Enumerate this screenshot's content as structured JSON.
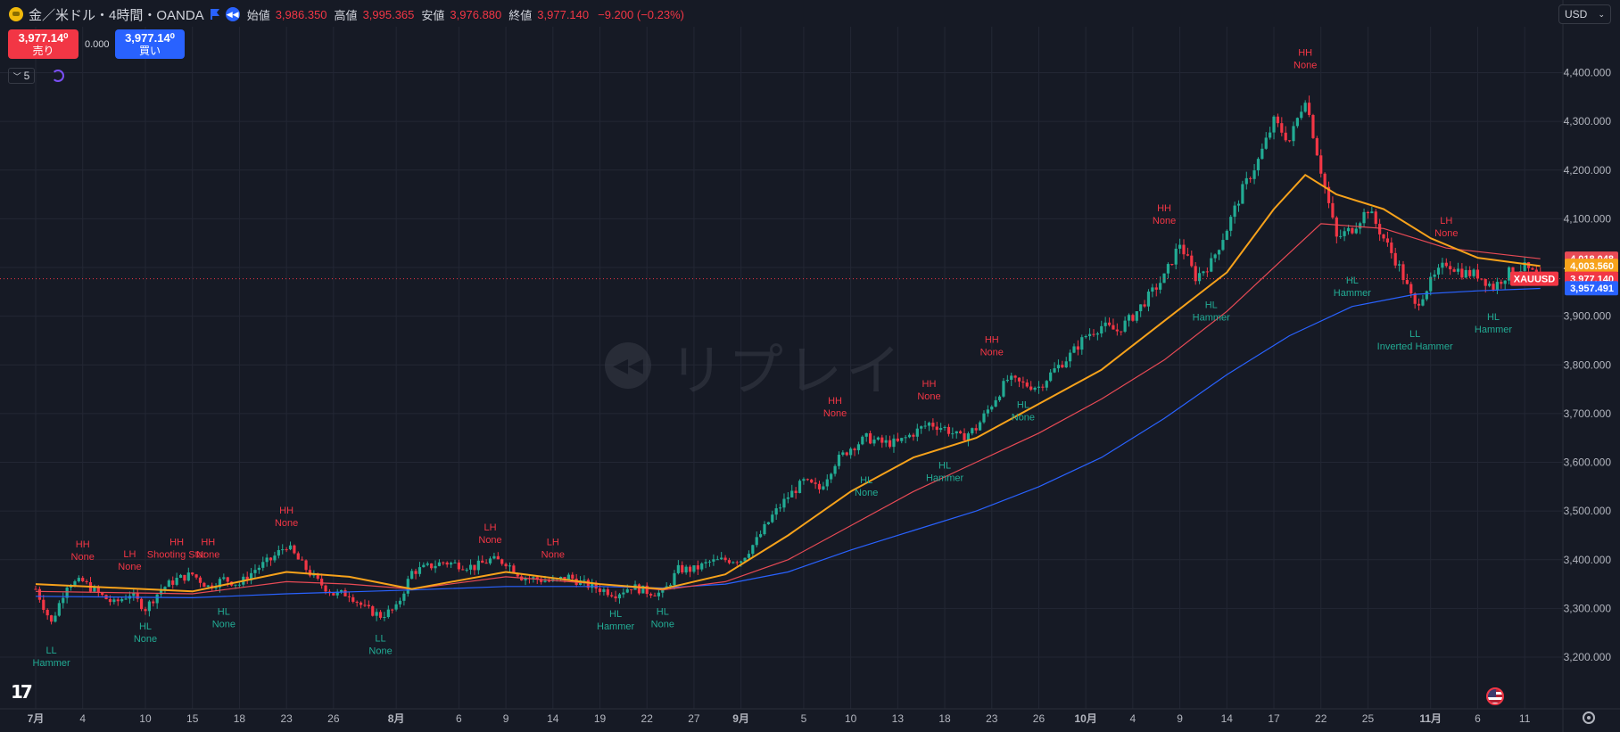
{
  "header": {
    "symbol": "金／米ドル・4時間・OANDA",
    "open_label": "始値",
    "open": "3,986.350",
    "high_label": "高値",
    "high": "3,995.365",
    "low_label": "安値",
    "low": "3,976.880",
    "close_label": "終値",
    "close": "3,977.140",
    "change": "−9.200 (−0.23%)"
  },
  "trade": {
    "sell_price": "3,977.14⁰",
    "sell_label": "売り",
    "spread": "0.000",
    "buy_price": "3,977.14⁰",
    "buy_label": "買い"
  },
  "indicator_count": "5",
  "currency": "USD",
  "watermark": "リプレイ",
  "colors": {
    "bg": "#161a25",
    "up": "#22ab94",
    "down": "#f23645",
    "ma_fast": "#f7a21b",
    "ma_mid": "#e84a55",
    "ma_slow": "#2962ff",
    "grid": "#232734",
    "text": "#b2b5be"
  },
  "chart_data": {
    "type": "candlestick",
    "symbol": "XAUUSD",
    "y_ticks": [
      3200000,
      3300000,
      3400000,
      3500000,
      3600000,
      3700000,
      3800000,
      3900000,
      4000000,
      4100000,
      4200000,
      4300000,
      4400000
    ],
    "y_tick_labels": [
      "3,200.000",
      "3,300.000",
      "3,400.000",
      "3,500.000",
      "3,600.000",
      "3,700.000",
      "3,800.000",
      "3,900.000",
      "4,000.000",
      "4,100.000",
      "4,200.000",
      "4,300.000",
      "4,400.000"
    ],
    "x_ticks": [
      {
        "t": 0,
        "label": "7月",
        "bold": true
      },
      {
        "t": 3,
        "label": "4"
      },
      {
        "t": 7,
        "label": "10"
      },
      {
        "t": 10,
        "label": "15"
      },
      {
        "t": 13,
        "label": "18"
      },
      {
        "t": 16,
        "label": "23"
      },
      {
        "t": 19,
        "label": "26"
      },
      {
        "t": 23,
        "label": "8月",
        "bold": true
      },
      {
        "t": 27,
        "label": "6"
      },
      {
        "t": 30,
        "label": "9"
      },
      {
        "t": 33,
        "label": "14"
      },
      {
        "t": 36,
        "label": "19"
      },
      {
        "t": 39,
        "label": "22"
      },
      {
        "t": 42,
        "label": "27"
      },
      {
        "t": 45,
        "label": "9月",
        "bold": true
      },
      {
        "t": 49,
        "label": "5"
      },
      {
        "t": 52,
        "label": "10"
      },
      {
        "t": 55,
        "label": "13"
      },
      {
        "t": 58,
        "label": "18"
      },
      {
        "t": 61,
        "label": "23"
      },
      {
        "t": 64,
        "label": "26"
      },
      {
        "t": 67,
        "label": "10月",
        "bold": true
      },
      {
        "t": 70,
        "label": "4"
      },
      {
        "t": 73,
        "label": "9"
      },
      {
        "t": 76,
        "label": "14"
      },
      {
        "t": 79,
        "label": "17"
      },
      {
        "t": 82,
        "label": "22"
      },
      {
        "t": 85,
        "label": "25"
      },
      {
        "t": 89,
        "label": "11月",
        "bold": true
      },
      {
        "t": 92,
        "label": "6"
      },
      {
        "t": 95,
        "label": "11"
      }
    ],
    "price_path": [
      [
        0,
        3340
      ],
      [
        1,
        3270
      ],
      [
        2,
        3350
      ],
      [
        3,
        3355
      ],
      [
        4,
        3330
      ],
      [
        5,
        3310
      ],
      [
        6,
        3330
      ],
      [
        7,
        3300
      ],
      [
        8,
        3340
      ],
      [
        9,
        3360
      ],
      [
        10,
        3370
      ],
      [
        11,
        3345
      ],
      [
        12,
        3360
      ],
      [
        13,
        3350
      ],
      [
        14,
        3380
      ],
      [
        15,
        3400
      ],
      [
        16,
        3430
      ],
      [
        17,
        3390
      ],
      [
        18,
        3355
      ],
      [
        19,
        3330
      ],
      [
        20,
        3330
      ],
      [
        21,
        3300
      ],
      [
        22,
        3285
      ],
      [
        23,
        3300
      ],
      [
        24,
        3375
      ],
      [
        25,
        3385
      ],
      [
        26,
        3395
      ],
      [
        27,
        3390
      ],
      [
        28,
        3385
      ],
      [
        29,
        3400
      ],
      [
        30,
        3395
      ],
      [
        31,
        3365
      ],
      [
        32,
        3360
      ],
      [
        33,
        3355
      ],
      [
        34,
        3365
      ],
      [
        35,
        3350
      ],
      [
        36,
        3340
      ],
      [
        37,
        3330
      ],
      [
        38,
        3345
      ],
      [
        39,
        3335
      ],
      [
        40,
        3330
      ],
      [
        41,
        3380
      ],
      [
        42,
        3380
      ],
      [
        43,
        3395
      ],
      [
        44,
        3400
      ],
      [
        45,
        3400
      ],
      [
        46,
        3440
      ],
      [
        47,
        3490
      ],
      [
        48,
        3530
      ],
      [
        49,
        3560
      ],
      [
        50,
        3545
      ],
      [
        51,
        3600
      ],
      [
        52,
        3630
      ],
      [
        53,
        3650
      ],
      [
        54,
        3640
      ],
      [
        55,
        3640
      ],
      [
        56,
        3660
      ],
      [
        57,
        3680
      ],
      [
        58,
        3670
      ],
      [
        59,
        3650
      ],
      [
        60,
        3670
      ],
      [
        61,
        3720
      ],
      [
        62,
        3770
      ],
      [
        63,
        3760
      ],
      [
        64,
        3755
      ],
      [
        65,
        3790
      ],
      [
        66,
        3820
      ],
      [
        67,
        3860
      ],
      [
        68,
        3880
      ],
      [
        69,
        3870
      ],
      [
        70,
        3900
      ],
      [
        71,
        3940
      ],
      [
        72,
        3980
      ],
      [
        73,
        4050
      ],
      [
        74,
        3980
      ],
      [
        75,
        4010
      ],
      [
        76,
        4080
      ],
      [
        77,
        4160
      ],
      [
        78,
        4220
      ],
      [
        79,
        4300
      ],
      [
        80,
        4260
      ],
      [
        81,
        4350
      ],
      [
        82,
        4200
      ],
      [
        83,
        4060
      ],
      [
        84,
        4080
      ],
      [
        85,
        4120
      ],
      [
        86,
        4060
      ],
      [
        87,
        4000
      ],
      [
        88,
        3920
      ],
      [
        89,
        3970
      ],
      [
        90,
        4010
      ],
      [
        91,
        3990
      ],
      [
        92,
        3985
      ],
      [
        93,
        3960
      ],
      [
        94,
        3990
      ],
      [
        95,
        4000
      ],
      [
        96,
        3977
      ]
    ],
    "last_index": 96,
    "ma_fast_label": "4,003.560",
    "ma_mid_label": "4,018.048",
    "ma_slow_label": "3,957.491",
    "price_label": "3,977.140",
    "ma_fast": [
      [
        0,
        3350
      ],
      [
        10,
        3335
      ],
      [
        16,
        3375
      ],
      [
        20,
        3365
      ],
      [
        24,
        3340
      ],
      [
        30,
        3375
      ],
      [
        36,
        3350
      ],
      [
        40,
        3340
      ],
      [
        44,
        3370
      ],
      [
        48,
        3450
      ],
      [
        52,
        3540
      ],
      [
        56,
        3610
      ],
      [
        60,
        3650
      ],
      [
        64,
        3720
      ],
      [
        68,
        3790
      ],
      [
        72,
        3890
      ],
      [
        76,
        3990
      ],
      [
        79,
        4120
      ],
      [
        81,
        4190
      ],
      [
        83,
        4150
      ],
      [
        86,
        4120
      ],
      [
        89,
        4060
      ],
      [
        92,
        4020
      ],
      [
        96,
        4003
      ]
    ],
    "ma_mid": [
      [
        0,
        3335
      ],
      [
        10,
        3330
      ],
      [
        16,
        3355
      ],
      [
        20,
        3350
      ],
      [
        24,
        3340
      ],
      [
        30,
        3365
      ],
      [
        36,
        3350
      ],
      [
        40,
        3338
      ],
      [
        44,
        3355
      ],
      [
        48,
        3400
      ],
      [
        52,
        3470
      ],
      [
        56,
        3540
      ],
      [
        60,
        3600
      ],
      [
        64,
        3660
      ],
      [
        68,
        3730
      ],
      [
        72,
        3810
      ],
      [
        76,
        3910
      ],
      [
        80,
        4030
      ],
      [
        82,
        4090
      ],
      [
        86,
        4080
      ],
      [
        90,
        4040
      ],
      [
        96,
        4018
      ]
    ],
    "ma_slow": [
      [
        0,
        3325
      ],
      [
        10,
        3322
      ],
      [
        16,
        3330
      ],
      [
        24,
        3338
      ],
      [
        30,
        3345
      ],
      [
        36,
        3345
      ],
      [
        40,
        3342
      ],
      [
        44,
        3350
      ],
      [
        48,
        3375
      ],
      [
        52,
        3420
      ],
      [
        56,
        3460
      ],
      [
        60,
        3500
      ],
      [
        64,
        3550
      ],
      [
        68,
        3610
      ],
      [
        72,
        3690
      ],
      [
        76,
        3780
      ],
      [
        80,
        3860
      ],
      [
        84,
        3920
      ],
      [
        88,
        3945
      ],
      [
        92,
        3952
      ],
      [
        96,
        3957
      ]
    ],
    "swing_labels": [
      {
        "t": 1,
        "p": 3240,
        "kind": "low",
        "line1": "LL",
        "line2": "Hammer"
      },
      {
        "t": 3,
        "p": 3370,
        "kind": "high",
        "line1": "HH",
        "line2": "None"
      },
      {
        "t": 6,
        "p": 3350,
        "kind": "high",
        "line1": "LH",
        "line2": "None"
      },
      {
        "t": 7,
        "p": 3290,
        "kind": "low",
        "line1": "HL",
        "line2": "None"
      },
      {
        "t": 9,
        "p": 3375,
        "kind": "high",
        "line1": "HH",
        "line2": "Shooting Star"
      },
      {
        "t": 11,
        "p": 3375,
        "kind": "high",
        "line1": "HH",
        "line2": "None"
      },
      {
        "t": 12,
        "p": 3320,
        "kind": "low",
        "line1": "HL",
        "line2": "None"
      },
      {
        "t": 16,
        "p": 3440,
        "kind": "high",
        "line1": "HH",
        "line2": "None"
      },
      {
        "t": 22,
        "p": 3265,
        "kind": "low",
        "line1": "LL",
        "line2": "None"
      },
      {
        "t": 29,
        "p": 3405,
        "kind": "high",
        "line1": "LH",
        "line2": "None"
      },
      {
        "t": 33,
        "p": 3375,
        "kind": "high",
        "line1": "LH",
        "line2": "None"
      },
      {
        "t": 37,
        "p": 3315,
        "kind": "low",
        "line1": "HL",
        "line2": "Hammer"
      },
      {
        "t": 40,
        "p": 3320,
        "kind": "low",
        "line1": "HL",
        "line2": "None"
      },
      {
        "t": 51,
        "p": 3665,
        "kind": "high",
        "line1": "HH",
        "line2": "None"
      },
      {
        "t": 53,
        "p": 3590,
        "kind": "low",
        "line1": "HL",
        "line2": "None"
      },
      {
        "t": 57,
        "p": 3700,
        "kind": "high",
        "line1": "HH",
        "line2": "None"
      },
      {
        "t": 58,
        "p": 3620,
        "kind": "low",
        "line1": "HL",
        "line2": "Hammer"
      },
      {
        "t": 61,
        "p": 3790,
        "kind": "high",
        "line1": "HH",
        "line2": "None"
      },
      {
        "t": 63,
        "p": 3745,
        "kind": "low",
        "line1": "HL",
        "line2": "None"
      },
      {
        "t": 72,
        "p": 4060,
        "kind": "high",
        "line1": "HH",
        "line2": "None"
      },
      {
        "t": 75,
        "p": 3950,
        "kind": "low",
        "line1": "HL",
        "line2": "Hammer"
      },
      {
        "t": 81,
        "p": 4380,
        "kind": "high",
        "line1": "HH",
        "line2": "None"
      },
      {
        "t": 84,
        "p": 4000,
        "kind": "low",
        "line1": "HL",
        "line2": "Hammer"
      },
      {
        "t": 88,
        "p": 3890,
        "kind": "low",
        "line1": "LL",
        "line2": "Inverted Hammer"
      },
      {
        "t": 90,
        "p": 4035,
        "kind": "high",
        "line1": "LH",
        "line2": "None"
      },
      {
        "t": 93,
        "p": 3925,
        "kind": "low",
        "line1": "HL",
        "line2": "Hammer"
      }
    ]
  }
}
